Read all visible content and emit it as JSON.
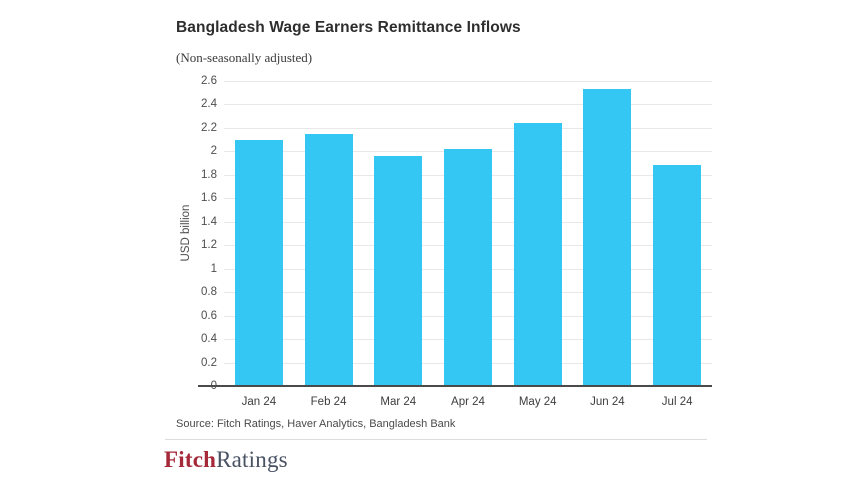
{
  "header": {
    "title": "Bangladesh Wage Earners Remittance Inflows",
    "subtitle": "(Non-seasonally adjusted)"
  },
  "chart_data": {
    "type": "bar",
    "categories": [
      "Jan 24",
      "Feb 24",
      "Mar 24",
      "Apr 24",
      "May 24",
      "Jun 24",
      "Jul 24"
    ],
    "values": [
      2.1,
      2.15,
      1.96,
      2.02,
      2.24,
      2.53,
      1.88
    ],
    "title": "Bangladesh Wage Earners Remittance Inflows",
    "xlabel": "",
    "ylabel": "USD billion",
    "ylim": [
      0,
      2.6
    ],
    "yticks": [
      "0",
      "0.2",
      "0.4",
      "0.6",
      "0.8",
      "1",
      "1.2",
      "1.4",
      "1.6",
      "1.8",
      "2",
      "2.2",
      "2.4",
      "2.6"
    ],
    "ytick_values": [
      0,
      0.2,
      0.4,
      0.6,
      0.8,
      1.0,
      1.2,
      1.4,
      1.6,
      1.8,
      2.0,
      2.2,
      2.4,
      2.6
    ],
    "grid": true,
    "legend": "none",
    "bar_color": "#35c7f4"
  },
  "footer": {
    "source": "Source: Fitch Ratings, Haver Analytics, Bangladesh Bank",
    "logo_part1": "Fitch",
    "logo_part2": "Ratings",
    "logo_color1": "#a6293a",
    "logo_color2": "#485263"
  }
}
